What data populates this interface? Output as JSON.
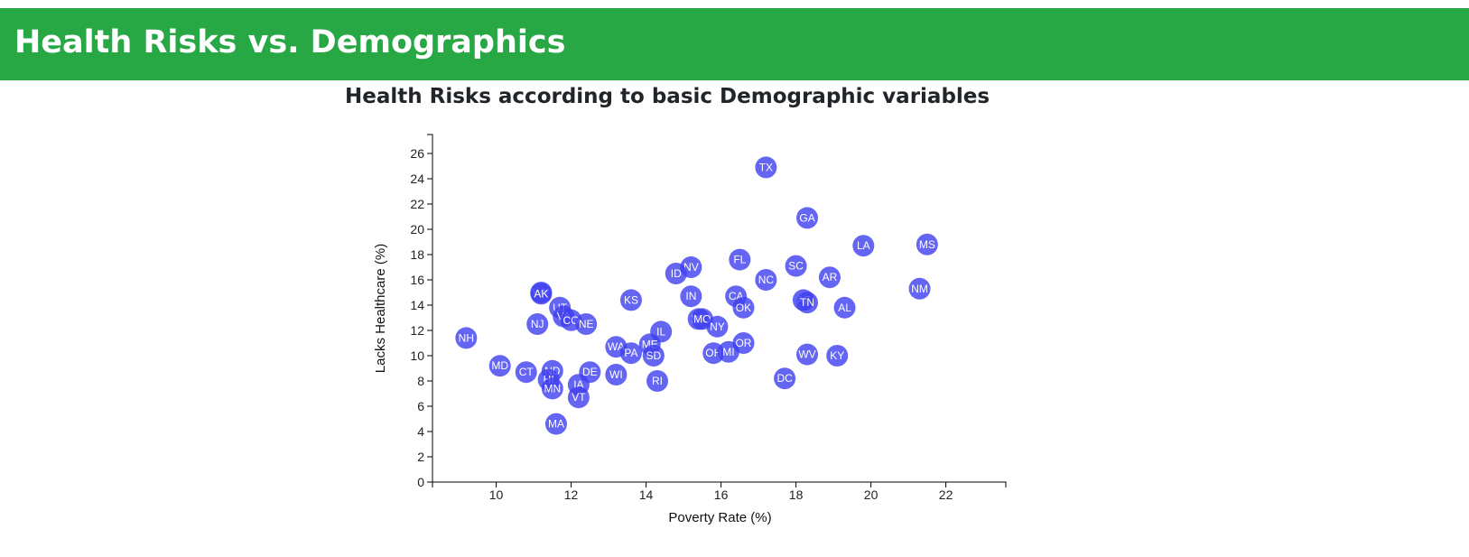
{
  "header": {
    "title": "Health Risks vs. Demographics"
  },
  "chart_data": {
    "type": "scatter",
    "title": "Health Risks according to basic Demographic variables",
    "xlabel": "Poverty Rate (%)",
    "ylabel": "Lacks Healthcare (%)",
    "xlim": [
      8.3,
      23.6
    ],
    "ylim": [
      0,
      27.5
    ],
    "xticks": [
      10,
      12,
      14,
      16,
      18,
      20,
      22
    ],
    "yticks": [
      0,
      2,
      4,
      6,
      8,
      10,
      12,
      14,
      16,
      18,
      20,
      22,
      24,
      26
    ],
    "grid": false,
    "marker_color": "#3f3ff0",
    "points": [
      {
        "label": "TX",
        "x": 17.2,
        "y": 24.9
      },
      {
        "label": "GA",
        "x": 18.3,
        "y": 20.9
      },
      {
        "label": "LA",
        "x": 19.8,
        "y": 18.7
      },
      {
        "label": "MS",
        "x": 21.5,
        "y": 18.8
      },
      {
        "label": "FL",
        "x": 16.5,
        "y": 17.6
      },
      {
        "label": "NV",
        "x": 15.2,
        "y": 17.0
      },
      {
        "label": "SC",
        "x": 18.0,
        "y": 17.1
      },
      {
        "label": "ID",
        "x": 14.8,
        "y": 16.5
      },
      {
        "label": "NC",
        "x": 17.2,
        "y": 16.0
      },
      {
        "label": "AR",
        "x": 18.9,
        "y": 16.2
      },
      {
        "label": "NM",
        "x": 21.3,
        "y": 15.3
      },
      {
        "label": "WY",
        "x": 11.2,
        "y": 15.0
      },
      {
        "label": "AK",
        "x": 11.2,
        "y": 14.9
      },
      {
        "label": "KS",
        "x": 13.6,
        "y": 14.4
      },
      {
        "label": "IN",
        "x": 15.2,
        "y": 14.7
      },
      {
        "label": "CA",
        "x": 16.4,
        "y": 14.7
      },
      {
        "label": "AZ",
        "x": 18.2,
        "y": 14.4
      },
      {
        "label": "TN",
        "x": 18.3,
        "y": 14.2
      },
      {
        "label": "OK",
        "x": 16.6,
        "y": 13.8
      },
      {
        "label": "AL",
        "x": 19.3,
        "y": 13.8
      },
      {
        "label": "UT",
        "x": 11.7,
        "y": 13.8
      },
      {
        "label": "VA",
        "x": 11.8,
        "y": 13.1
      },
      {
        "label": "CO",
        "x": 12.0,
        "y": 12.8
      },
      {
        "label": "NE",
        "x": 12.4,
        "y": 12.5
      },
      {
        "label": "NJ",
        "x": 11.1,
        "y": 12.5
      },
      {
        "label": "MT",
        "x": 15.4,
        "y": 12.9
      },
      {
        "label": "MO",
        "x": 15.5,
        "y": 12.9
      },
      {
        "label": "NY",
        "x": 15.9,
        "y": 12.3
      },
      {
        "label": "IL",
        "x": 14.4,
        "y": 11.9
      },
      {
        "label": "NH",
        "x": 9.2,
        "y": 11.4
      },
      {
        "label": "OR",
        "x": 16.6,
        "y": 11.0
      },
      {
        "label": "ME",
        "x": 14.1,
        "y": 10.9
      },
      {
        "label": "WA",
        "x": 13.2,
        "y": 10.7
      },
      {
        "label": "OH",
        "x": 15.8,
        "y": 10.2
      },
      {
        "label": "MI",
        "x": 16.2,
        "y": 10.3
      },
      {
        "label": "PA",
        "x": 13.6,
        "y": 10.2
      },
      {
        "label": "SD",
        "x": 14.2,
        "y": 10.0
      },
      {
        "label": "WV",
        "x": 18.3,
        "y": 10.1
      },
      {
        "label": "KY",
        "x": 19.1,
        "y": 10.0
      },
      {
        "label": "MD",
        "x": 10.1,
        "y": 9.2
      },
      {
        "label": "CT",
        "x": 10.8,
        "y": 8.7
      },
      {
        "label": "ND",
        "x": 11.5,
        "y": 8.8
      },
      {
        "label": "DE",
        "x": 12.5,
        "y": 8.7
      },
      {
        "label": "WI",
        "x": 13.2,
        "y": 8.5
      },
      {
        "label": "HI",
        "x": 11.4,
        "y": 8.1
      },
      {
        "label": "RI",
        "x": 14.3,
        "y": 8.0
      },
      {
        "label": "DC",
        "x": 17.7,
        "y": 8.2
      },
      {
        "label": "IA",
        "x": 12.2,
        "y": 7.7
      },
      {
        "label": "MN",
        "x": 11.5,
        "y": 7.4
      },
      {
        "label": "VT",
        "x": 12.2,
        "y": 6.7
      },
      {
        "label": "MA",
        "x": 11.6,
        "y": 4.6
      }
    ]
  }
}
